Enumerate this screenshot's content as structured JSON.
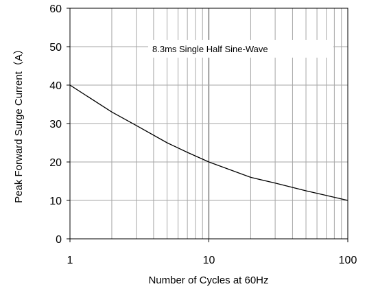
{
  "chart_data": {
    "type": "line",
    "title": "",
    "xlabel": "Number of Cycles at 60Hz",
    "ylabel": "Peak Forward Surge Current（A）",
    "xscale": "log",
    "xlim": [
      1,
      100
    ],
    "ylim": [
      0,
      60
    ],
    "x_ticks": [
      1,
      10,
      100
    ],
    "x_tick_labels": [
      "1",
      "10",
      "100"
    ],
    "y_ticks": [
      0,
      10,
      20,
      30,
      40,
      50,
      60
    ],
    "y_tick_labels": [
      "0",
      "10",
      "20",
      "30",
      "40",
      "50",
      "60"
    ],
    "grid": true,
    "annotation": "8.3ms Single Half Sine-Wave",
    "line_color": "#000000",
    "grid_color": "#a6a6a6",
    "series": [
      {
        "x": [
          1,
          2,
          3,
          5,
          7,
          10,
          20,
          30,
          50,
          70,
          100
        ],
        "y": [
          40,
          33,
          29.5,
          25,
          22.5,
          20,
          16,
          14.5,
          12.5,
          11.3,
          10
        ]
      }
    ]
  }
}
